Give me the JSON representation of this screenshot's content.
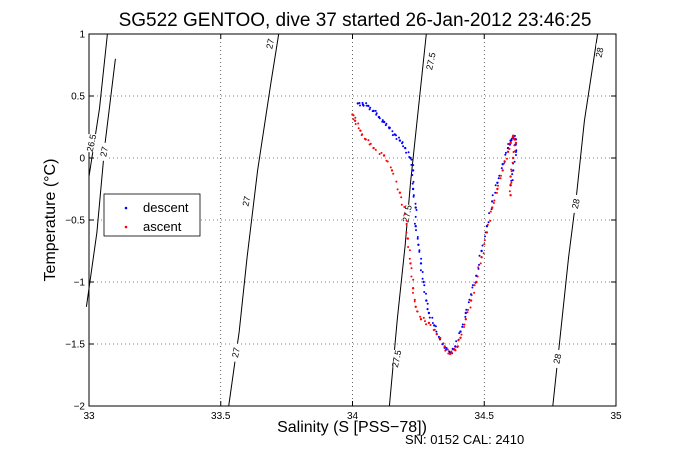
{
  "chart_data": {
    "type": "scatter",
    "title": "SG522 GENTOO, dive 37 started 26-Jan-2012 23:46:25",
    "xlabel": "Salinity (S [PSS−78])",
    "ylabel": "Temperature (°C)",
    "xlim": [
      33,
      35
    ],
    "ylim": [
      -2,
      1
    ],
    "x_ticks": [
      "33",
      "33.5",
      "34",
      "34.5",
      "35"
    ],
    "y_ticks": [
      "1",
      "0.5",
      "0",
      "−0.5",
      "−1",
      "−1.5",
      "−2"
    ],
    "grid": true,
    "legend_position": "left",
    "series": [
      {
        "name": "descent",
        "color": "#0000ff",
        "points": [
          [
            34.02,
            0.44
          ],
          [
            34.04,
            0.43
          ],
          [
            34.06,
            0.42
          ],
          [
            34.08,
            0.38
          ],
          [
            34.1,
            0.33
          ],
          [
            34.12,
            0.29
          ],
          [
            34.14,
            0.24
          ],
          [
            34.16,
            0.19
          ],
          [
            34.18,
            0.14
          ],
          [
            34.2,
            0.08
          ],
          [
            34.22,
            0.0
          ],
          [
            34.23,
            -0.1
          ],
          [
            34.23,
            -0.25
          ],
          [
            34.24,
            -0.4
          ],
          [
            34.24,
            -0.55
          ],
          [
            34.25,
            -0.7
          ],
          [
            34.26,
            -0.85
          ],
          [
            34.27,
            -1.0
          ],
          [
            34.28,
            -1.15
          ],
          [
            34.29,
            -1.25
          ],
          [
            34.31,
            -1.35
          ],
          [
            34.33,
            -1.45
          ],
          [
            34.35,
            -1.53
          ],
          [
            34.37,
            -1.57
          ],
          [
            34.39,
            -1.52
          ],
          [
            34.41,
            -1.4
          ],
          [
            34.43,
            -1.25
          ],
          [
            34.45,
            -1.1
          ],
          [
            34.47,
            -0.95
          ],
          [
            34.49,
            -0.75
          ],
          [
            34.51,
            -0.55
          ],
          [
            34.53,
            -0.35
          ],
          [
            34.55,
            -0.2
          ],
          [
            34.57,
            -0.05
          ],
          [
            34.59,
            0.08
          ],
          [
            34.6,
            0.14
          ],
          [
            34.61,
            0.17
          ],
          [
            34.62,
            0.15
          ],
          [
            34.62,
            0.05
          ],
          [
            34.61,
            -0.1
          ],
          [
            34.6,
            -0.22
          ]
        ]
      },
      {
        "name": "ascent",
        "color": "#ff0000",
        "points": [
          [
            34.0,
            0.35
          ],
          [
            34.01,
            0.3
          ],
          [
            34.03,
            0.22
          ],
          [
            34.05,
            0.15
          ],
          [
            34.08,
            0.08
          ],
          [
            34.12,
            0.02
          ],
          [
            34.15,
            -0.1
          ],
          [
            34.18,
            -0.28
          ],
          [
            34.2,
            -0.45
          ],
          [
            34.21,
            -0.65
          ],
          [
            34.22,
            -0.85
          ],
          [
            34.23,
            -1.05
          ],
          [
            34.24,
            -1.2
          ],
          [
            34.26,
            -1.3
          ],
          [
            34.29,
            -1.33
          ],
          [
            34.32,
            -1.42
          ],
          [
            34.35,
            -1.52
          ],
          [
            34.37,
            -1.58
          ],
          [
            34.39,
            -1.55
          ],
          [
            34.41,
            -1.45
          ],
          [
            34.43,
            -1.3
          ],
          [
            34.45,
            -1.15
          ],
          [
            34.47,
            -1.0
          ],
          [
            34.49,
            -0.8
          ],
          [
            34.51,
            -0.6
          ],
          [
            34.53,
            -0.4
          ],
          [
            34.55,
            -0.25
          ],
          [
            34.57,
            -0.1
          ],
          [
            34.59,
            0.05
          ],
          [
            34.6,
            0.12
          ],
          [
            34.61,
            0.18
          ],
          [
            34.62,
            0.12
          ],
          [
            34.61,
            0.0
          ],
          [
            34.6,
            -0.15
          ],
          [
            34.6,
            -0.3
          ]
        ]
      }
    ],
    "contours": [
      {
        "label": "26.5",
        "points": [
          [
            33.0,
            -0.15
          ],
          [
            33.04,
            0.4
          ],
          [
            33.07,
            1.0
          ]
        ],
        "label_at": [
          33.012,
          0.12
        ]
      },
      {
        "label": "27",
        "points": [
          [
            32.99,
            -1.2
          ],
          [
            33.03,
            -0.6
          ],
          [
            33.06,
            0.1
          ],
          [
            33.1,
            0.8
          ]
        ],
        "label_at": [
          33.06,
          0.05
        ]
      },
      {
        "label": "27",
        "points": [
          [
            33.53,
            -2.0
          ],
          [
            33.57,
            -1.4
          ],
          [
            33.6,
            -0.8
          ],
          [
            33.64,
            -0.1
          ],
          [
            33.69,
            0.6
          ],
          [
            33.72,
            1.0
          ]
        ],
        "label_at": [
          33.6,
          -0.35
        ]
      },
      {
        "label": "27",
        "points": [
          [
            33.6,
            -1.55
          ],
          [
            33.6,
            -1.55
          ]
        ],
        "label_at": [
          33.56,
          -1.57
        ]
      },
      {
        "label": "27",
        "points": [
          [
            33.68,
            0.9
          ],
          [
            33.68,
            0.9
          ]
        ],
        "label_at": [
          33.69,
          0.92
        ]
      },
      {
        "label": "27.5",
        "points": [
          [
            34.14,
            -2.0
          ],
          [
            34.17,
            -1.3
          ],
          [
            34.2,
            -0.7
          ],
          [
            34.22,
            -0.2
          ],
          [
            34.25,
            0.4
          ],
          [
            34.28,
            1.0
          ]
        ],
        "label_at": [
          34.21,
          -0.45
        ]
      },
      {
        "label": "27.5",
        "points": [
          [
            34.17,
            -1.55
          ],
          [
            34.17,
            -1.55
          ]
        ],
        "label_at": [
          34.17,
          -1.62
        ]
      },
      {
        "label": "27.5",
        "points": [
          [
            34.28,
            0.9
          ],
          [
            34.28,
            0.9
          ]
        ],
        "label_at": [
          34.3,
          0.78
        ]
      },
      {
        "label": "28",
        "points": [
          [
            34.76,
            -2.0
          ],
          [
            34.79,
            -1.4
          ],
          [
            34.82,
            -0.8
          ],
          [
            34.85,
            -0.3
          ],
          [
            34.88,
            0.3
          ],
          [
            34.93,
            1.0
          ]
        ],
        "label_at": [
          34.85,
          -0.37
        ]
      },
      {
        "label": "28",
        "points": [
          [
            34.78,
            -1.57
          ],
          [
            34.78,
            -1.57
          ]
        ],
        "label_at": [
          34.78,
          -1.62
        ]
      },
      {
        "label": "28",
        "points": [
          [
            34.93,
            0.85
          ],
          [
            34.93,
            0.85
          ]
        ],
        "label_at": [
          34.94,
          0.85
        ]
      }
    ]
  },
  "legend": {
    "descent_label": "descent",
    "ascent_label": "ascent"
  },
  "footer": {
    "serial": "SN: 0152  CAL: 2410"
  }
}
